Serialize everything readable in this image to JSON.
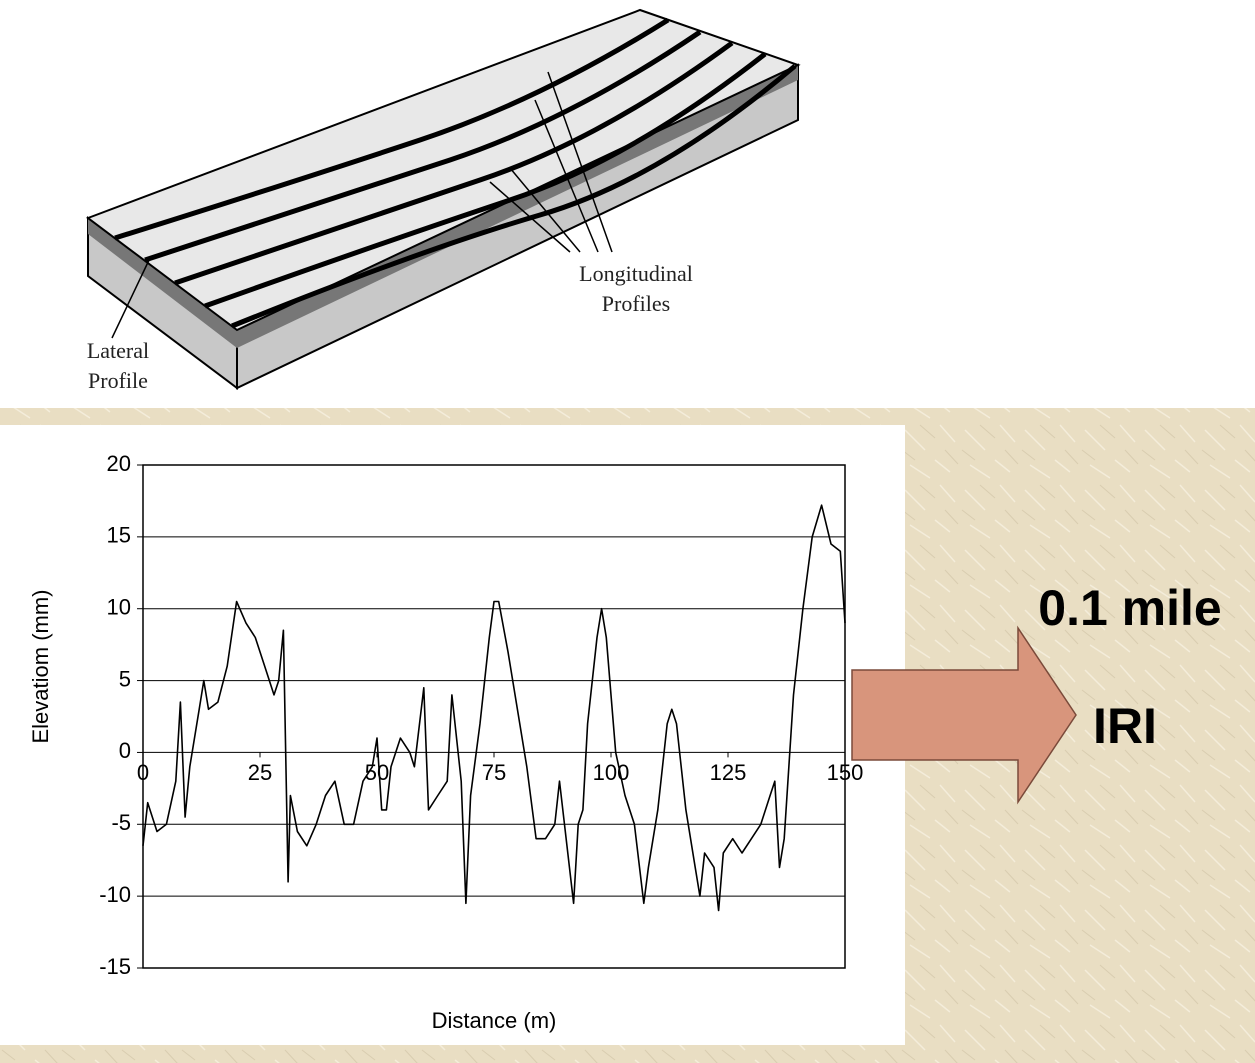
{
  "diagram": {
    "longitudinal_label": [
      "Longitudinal",
      "Profiles"
    ],
    "lateral_label": [
      "Lateral",
      "Profile"
    ]
  },
  "callout": {
    "lines": [
      "0.1 mile",
      "IRI"
    ]
  },
  "chart_data": {
    "type": "line",
    "xlabel": "Distance (m)",
    "ylabel": "Elevatiom (mm)",
    "xlim": [
      0,
      150
    ],
    "ylim": [
      -15,
      20
    ],
    "xticks": [
      0,
      25,
      50,
      75,
      100,
      125,
      150
    ],
    "yticks": [
      -15,
      -10,
      -5,
      0,
      5,
      10,
      15,
      20
    ],
    "grid": true,
    "color": "#000000",
    "x": [
      0,
      1,
      3,
      5,
      7,
      8,
      9,
      10,
      12,
      13,
      14,
      16,
      18,
      20,
      22,
      24,
      26,
      28,
      29,
      30,
      31,
      31.5,
      33,
      35,
      37,
      39,
      41,
      43,
      45,
      47,
      49,
      50,
      51,
      52,
      53,
      55,
      57,
      58,
      60,
      61,
      63,
      65,
      66,
      68,
      69,
      70,
      72,
      74,
      75,
      76,
      78,
      80,
      82,
      84,
      86,
      88,
      89,
      92,
      93,
      94,
      95,
      97,
      98,
      99,
      101,
      103,
      105,
      107,
      108,
      110,
      112,
      113,
      114,
      116,
      118,
      119,
      120,
      122,
      123,
      124,
      126,
      128,
      130,
      132,
      134,
      135,
      136,
      137,
      139,
      141,
      143,
      145,
      147,
      149,
      150
    ],
    "values": [
      -6.5,
      -3.5,
      -5.5,
      -5,
      -2,
      3.5,
      -4.5,
      -1,
      3,
      5,
      3,
      3.5,
      6,
      10.5,
      9,
      8,
      6,
      4,
      5,
      8.5,
      -9,
      -3,
      -5.5,
      -6.5,
      -5,
      -3,
      -2,
      -5,
      -5,
      -2,
      -1,
      1,
      -4,
      -4,
      -1,
      1,
      0,
      -1,
      4.5,
      -4,
      -3,
      -2,
      4,
      -2,
      -10.5,
      -3,
      2,
      8,
      10.5,
      10.5,
      7,
      3,
      -1,
      -6,
      -6,
      -5,
      -2,
      -10.5,
      -5,
      -4,
      2,
      8,
      10,
      8,
      0,
      -3,
      -5,
      -10.5,
      -8,
      -4,
      2,
      3,
      2,
      -4,
      -8,
      -10,
      -7,
      -8,
      -11,
      -7,
      -6,
      -7,
      -6,
      -5,
      -3,
      -2,
      -8,
      -6,
      4,
      10,
      15,
      17.2,
      14.5,
      14,
      9
    ]
  }
}
